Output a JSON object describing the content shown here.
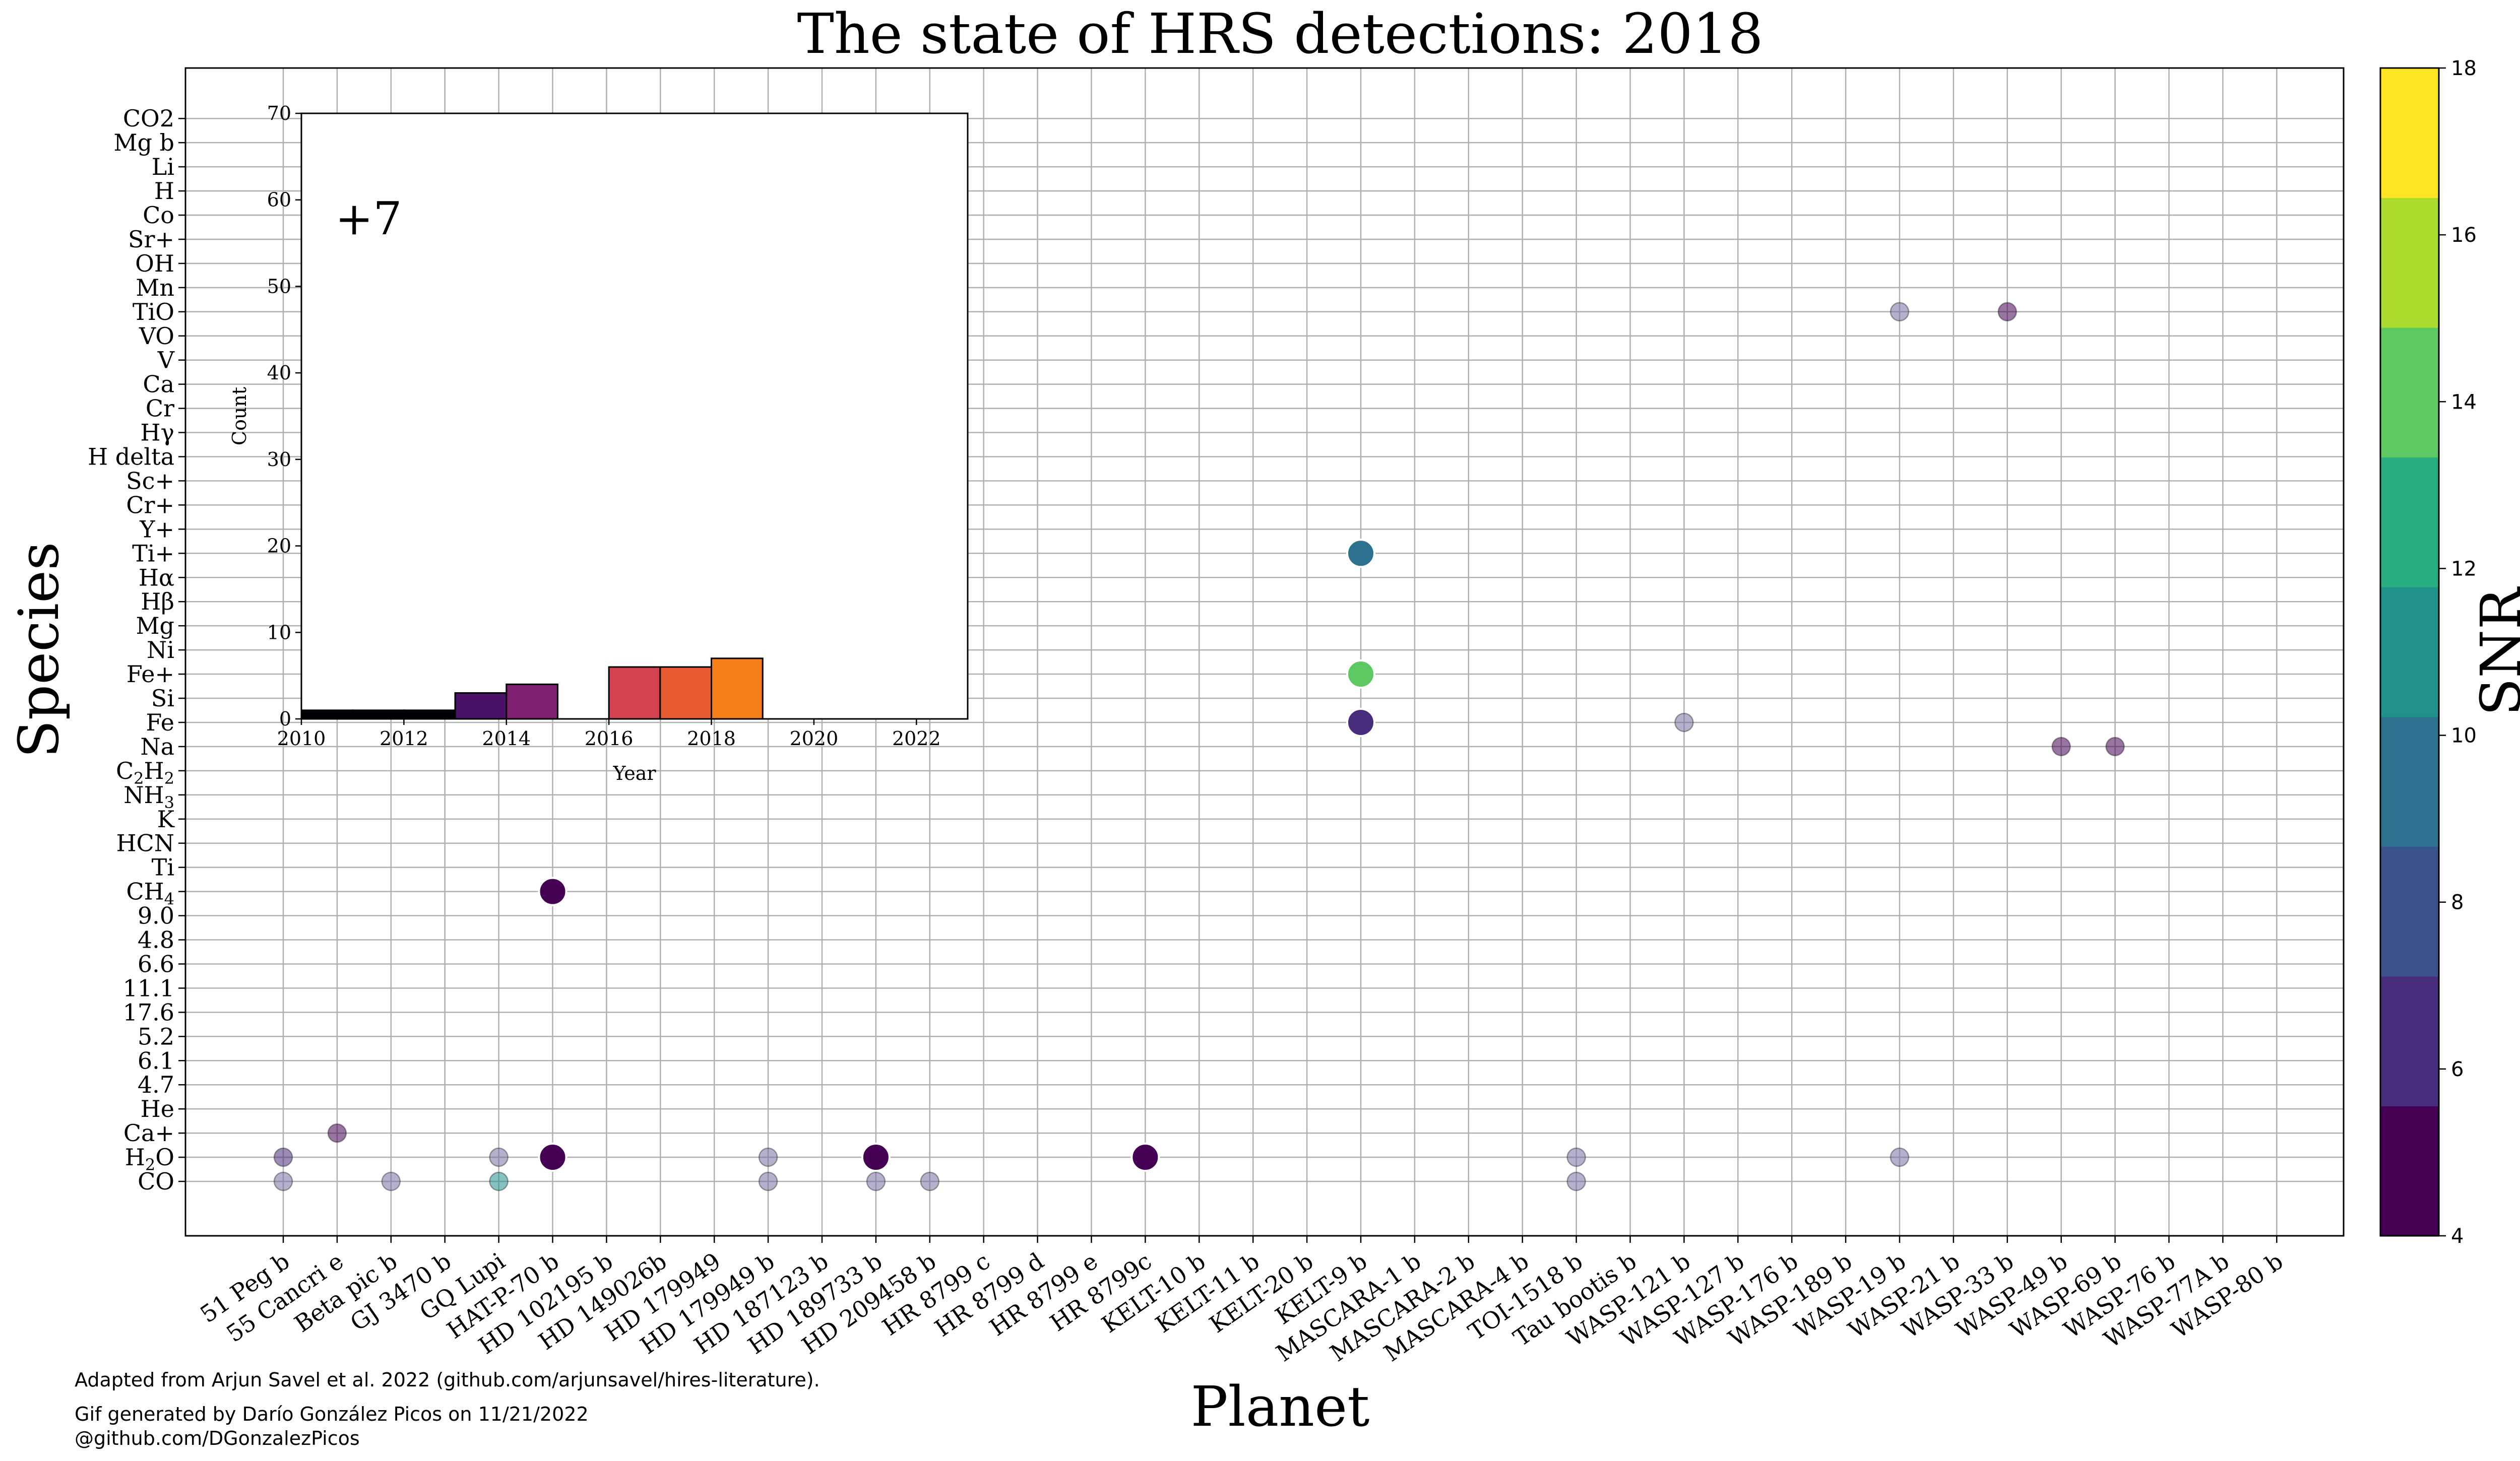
{
  "chart_data": {
    "type": "scatter",
    "title": "The state of HRS detections: 2018",
    "xlabel": "Planet",
    "ylabel": "Species",
    "colorbar": {
      "label": "SNR",
      "range": [
        4,
        18
      ],
      "ticks": [
        "4",
        "6",
        "8",
        "10",
        "12",
        "14",
        "16",
        "18"
      ],
      "levels": 9,
      "colormap": "viridis",
      "discrete_colors": [
        "#440154",
        "#472d7b",
        "#3b528b",
        "#2c728e",
        "#21918c",
        "#28ae80",
        "#5ec962",
        "#addc30",
        "#fde725"
      ]
    },
    "grid": true,
    "planets": [
      "51 Peg b",
      "55 Cancri e",
      "Beta pic b",
      "GJ 3470 b",
      "GQ Lupi",
      "HAT-P-70 b",
      "HD 102195 b",
      "HD 149026b",
      "HD 179949",
      "HD 179949 b",
      "HD 187123 b",
      "HD 189733 b",
      "HD 209458 b",
      "HR 8799 c",
      "HR 8799 d",
      "HR 8799 e",
      "HR 8799c",
      "KELT-10 b",
      "KELT-11 b",
      "KELT-20 b",
      "KELT-9 b",
      "MASCARA-1 b",
      "MASCARA-2 b",
      "MASCARA-4 b",
      "TOI-1518 b",
      "Tau bootis b",
      "WASP-121 b",
      "WASP-127 b",
      "WASP-176 b",
      "WASP-189 b",
      "WASP-19 b",
      "WASP-21 b",
      "WASP-33 b",
      "WASP-49 b",
      "WASP-69 b",
      "WASP-76 b",
      "WASP-77A b",
      "WASP-80 b"
    ],
    "species": [
      "CO",
      "H2O",
      "Ca+",
      "He",
      "4.7",
      "6.1",
      "5.2",
      "17.6",
      "11.1",
      "6.6",
      "4.8",
      "9.0",
      "CH4",
      "Ti",
      "HCN",
      "K",
      "NH3",
      "C2H2",
      "Na",
      "Fe",
      "Si",
      "Fe+",
      "Ni",
      "Mg",
      "Hβ",
      "Hα",
      "Ti+",
      "Y+",
      "Cr+",
      "Sc+",
      "H delta",
      "Hγ",
      "Cr",
      "Ca",
      "V",
      "VO",
      "TiO",
      "Mn",
      "OH",
      "Sr+",
      "Co",
      "H",
      "Li",
      "Mg b",
      "CO2"
    ],
    "points": [
      {
        "planet": "51 Peg b",
        "species": "CO",
        "snr": null,
        "new": false
      },
      {
        "planet": "51 Peg b",
        "species": "H2O",
        "snr": 6,
        "new": false
      },
      {
        "planet": "55 Cancri e",
        "species": "Ca+",
        "snr": 5,
        "new": false
      },
      {
        "planet": "Beta pic b",
        "species": "CO",
        "snr": null,
        "new": false
      },
      {
        "planet": "GQ Lupi",
        "species": "CO",
        "snr": 11,
        "new": false
      },
      {
        "planet": "GQ Lupi",
        "species": "H2O",
        "snr": null,
        "new": false
      },
      {
        "planet": "HAT-P-70 b",
        "species": "H2O",
        "snr": 4,
        "new": true
      },
      {
        "planet": "HAT-P-70 b",
        "species": "CH4",
        "snr": 4,
        "new": true
      },
      {
        "planet": "HD 179949 b",
        "species": "CO",
        "snr": null,
        "new": false
      },
      {
        "planet": "HD 179949 b",
        "species": "H2O",
        "snr": null,
        "new": false
      },
      {
        "planet": "HD 189733 b",
        "species": "CO",
        "snr": null,
        "new": false
      },
      {
        "planet": "HD 189733 b",
        "species": "H2O",
        "snr": 4,
        "new": true
      },
      {
        "planet": "HD 209458 b",
        "species": "CO",
        "snr": null,
        "new": false
      },
      {
        "planet": "HR 8799c",
        "species": "H2O",
        "snr": 4,
        "new": true
      },
      {
        "planet": "KELT-9 b",
        "species": "Fe",
        "snr": 6,
        "new": true
      },
      {
        "planet": "KELT-9 b",
        "species": "Fe+",
        "snr": 14,
        "new": true
      },
      {
        "planet": "KELT-9 b",
        "species": "Ti+",
        "snr": 9,
        "new": true
      },
      {
        "planet": "TOI-1518 b",
        "species": "CO",
        "snr": null,
        "new": false
      },
      {
        "planet": "TOI-1518 b",
        "species": "H2O",
        "snr": null,
        "new": false
      },
      {
        "planet": "WASP-121 b",
        "species": "Fe",
        "snr": null,
        "new": false
      },
      {
        "planet": "WASP-19 b",
        "species": "H2O",
        "snr": null,
        "new": false
      },
      {
        "planet": "WASP-19 b",
        "species": "TiO",
        "snr": null,
        "new": false
      },
      {
        "planet": "WASP-33 b",
        "species": "TiO",
        "snr": 5,
        "new": false
      },
      {
        "planet": "WASP-49 b",
        "species": "Na",
        "snr": 5,
        "new": false
      },
      {
        "planet": "WASP-69 b",
        "species": "Na",
        "snr": 5,
        "new": false
      }
    ],
    "inset": {
      "type": "bar",
      "xlabel": "Year",
      "ylabel": "Count",
      "xlim": [
        2010,
        2023
      ],
      "ylim": [
        0,
        70
      ],
      "xticks": [
        "2010",
        "2012",
        "2014",
        "2016",
        "2018",
        "2020",
        "2022"
      ],
      "yticks": [
        "0",
        "10",
        "20",
        "30",
        "40",
        "50",
        "60",
        "70"
      ],
      "annotation": "+7",
      "bars": [
        {
          "year": 2010,
          "count": 1
        },
        {
          "year": 2011,
          "count": 1
        },
        {
          "year": 2012,
          "count": 1
        },
        {
          "year": 2013,
          "count": 3
        },
        {
          "year": 2014,
          "count": 4
        },
        {
          "year": 2015,
          "count": 0
        },
        {
          "year": 2016,
          "count": 6
        },
        {
          "year": 2017,
          "count": 6
        },
        {
          "year": 2018,
          "count": 7
        }
      ]
    }
  },
  "footnotes": {
    "line1": "Adapted from Arjun Savel et al. 2022 (github.com/arjunsavel/hires-literature).",
    "line2": "Gif generated by Darío González Picos on 11/21/2022",
    "line3": "@github.com/DGonzalezPicos"
  }
}
